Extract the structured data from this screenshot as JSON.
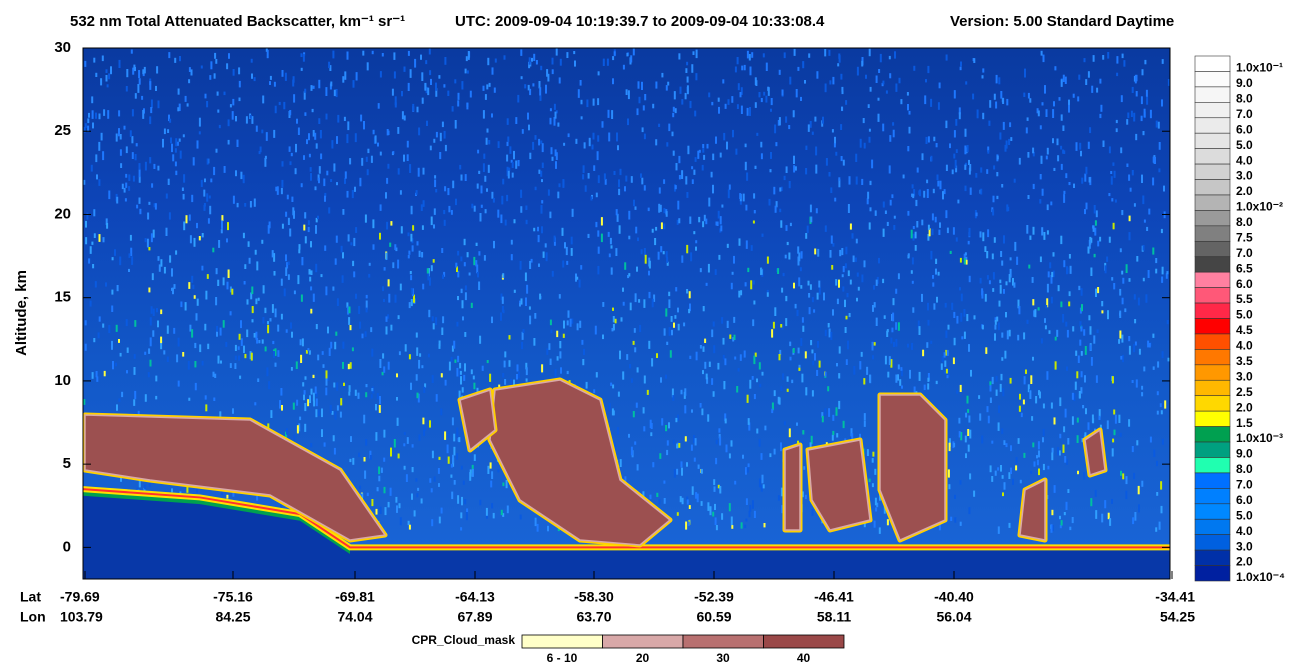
{
  "chart_data": {
    "type": "heatmap",
    "title": "532 nm Total Attenuated Backscatter, km⁻¹ sr⁻¹",
    "subtitle": "UTC:  2009-09-04 10:19:39.7  to  2009-09-04 10:33:08.4",
    "version": "Version: 5.00  Standard  Daytime",
    "ylabel": "Altitude, km",
    "ylim": [
      -1.9,
      30
    ],
    "yticks": [
      0,
      5,
      10,
      15,
      20,
      25,
      30
    ],
    "x_row_labels": [
      "Lat",
      "Lon"
    ],
    "lat": [
      "-79.69",
      "-75.16",
      "-69.81",
      "-64.13",
      "-58.30",
      "-52.39",
      "-46.41",
      "-40.40",
      "-34.41"
    ],
    "lon": [
      "103.79",
      "84.25",
      "74.04",
      "67.89",
      "63.70",
      "60.59",
      "58.11",
      "56.04",
      "54.25"
    ],
    "colorbar": {
      "labels": [
        "1.0x10⁻¹",
        "9.0",
        "8.0",
        "7.0",
        "6.0",
        "5.0",
        "4.0",
        "3.0",
        "2.0",
        "1.0x10⁻²",
        "8.0",
        "7.5",
        "7.0",
        "6.5",
        "6.0",
        "5.5",
        "5.0",
        "4.5",
        "4.0",
        "3.5",
        "3.0",
        "2.5",
        "2.0",
        "1.5",
        "1.0x10⁻³",
        "9.0",
        "8.0",
        "7.0",
        "6.0",
        "5.0",
        "4.0",
        "3.0",
        "2.0",
        "1.0x10⁻⁴"
      ],
      "colors": [
        "#ffffff",
        "#fbfbfb",
        "#f6f6f6",
        "#f0f0f0",
        "#ebebeb",
        "#e5e5e5",
        "#dcdcdc",
        "#d2d2d2",
        "#c6c6c6",
        "#b4b4b4",
        "#9a9a9a",
        "#808080",
        "#646464",
        "#454545",
        "#ff80a0",
        "#ff5878",
        "#ff2848",
        "#ff0000",
        "#ff5000",
        "#ff7800",
        "#ff9800",
        "#ffb800",
        "#ffd800",
        "#ffff00",
        "#00a050",
        "#00a080",
        "#20ffb0",
        "#0070ff",
        "#0080ff",
        "#0088ff",
        "#0078f0",
        "#0060e0",
        "#0030a8",
        "#0020a0"
      ]
    },
    "cpr_legend": {
      "label": "CPR_Cloud_mask",
      "items": [
        "6 - 10",
        "20",
        "30",
        "40"
      ],
      "colors": [
        "#ffffc8",
        "#d8a8a8",
        "#b87070",
        "#9a4848"
      ]
    }
  }
}
